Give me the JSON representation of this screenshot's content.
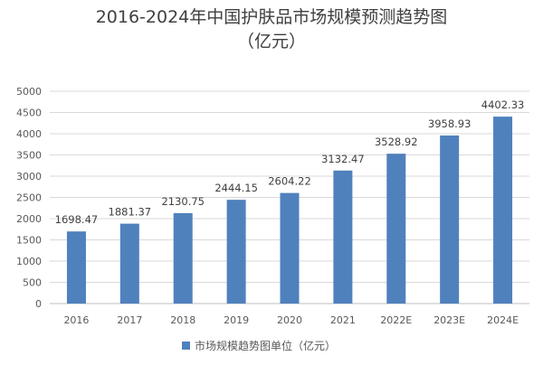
{
  "chart_data": {
    "type": "bar",
    "title": "2016-2024年中国护肤品市场规模预测趋势图",
    "subtitle": "（亿元）",
    "categories": [
      "2016",
      "2017",
      "2018",
      "2019",
      "2020",
      "2021",
      "2022E",
      "2023E",
      "2024E"
    ],
    "series": [
      {
        "name": "市场规模趋势图单位（亿元）",
        "values": [
          1698.47,
          1881.37,
          2130.75,
          2444.15,
          2604.22,
          3132.47,
          3528.92,
          3958.93,
          4402.33
        ]
      }
    ],
    "ylim": [
      0,
      5000
    ],
    "yticks": [
      0,
      500,
      1000,
      1500,
      2000,
      2500,
      3000,
      3500,
      4000,
      4500,
      5000
    ],
    "grid": true,
    "legend_position": "bottom",
    "bar_color": "#4f81bd",
    "xlabel": "",
    "ylabel": ""
  }
}
